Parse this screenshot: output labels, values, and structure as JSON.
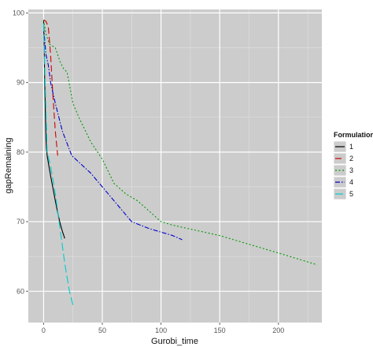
{
  "chart_data": {
    "type": "line",
    "xlabel": "Gurobi_time",
    "ylabel": "gapRemaining",
    "xlim": [
      -13,
      237
    ],
    "ylim": [
      55.5,
      100.5
    ],
    "xticks": [
      0,
      50,
      100,
      150,
      200
    ],
    "yticks": [
      60,
      70,
      80,
      90,
      100
    ],
    "grid": true,
    "legend": {
      "title": "Formulation",
      "placement": "right"
    },
    "series": [
      {
        "name": "1",
        "color": "#000000",
        "dash": "solid",
        "x": [
          0,
          0.5,
          1,
          1.5,
          2,
          2.5,
          3,
          4,
          6,
          8,
          10,
          12,
          14,
          16,
          18
        ],
        "y": [
          99,
          95,
          90,
          86,
          82,
          80.5,
          79.5,
          78.5,
          76.6,
          74.8,
          73.0,
          71.3,
          69.8,
          68.6,
          67.6
        ]
      },
      {
        "name": "2",
        "color": "#cc0000",
        "dash": "8,4",
        "x": [
          0,
          2,
          4,
          6,
          8,
          10,
          12
        ],
        "y": [
          99,
          98.8,
          98,
          94,
          88,
          83,
          79.5
        ]
      },
      {
        "name": "3",
        "color": "#009900",
        "dash": "2,2.5",
        "x": [
          0,
          2,
          5,
          10,
          14,
          17,
          20,
          25,
          30,
          40,
          50,
          60,
          70,
          80,
          90,
          100,
          110,
          150,
          200,
          233
        ],
        "y": [
          99,
          97,
          95.5,
          95,
          93,
          92,
          91.5,
          87,
          85,
          81.5,
          79,
          75.5,
          74,
          73,
          71.5,
          70,
          69.5,
          68,
          65.5,
          63.8
        ]
      },
      {
        "name": "4",
        "color": "#0000cc",
        "dash": "6,2,1.5,2",
        "x": [
          0,
          2,
          4,
          6,
          10,
          16,
          24,
          40,
          55,
          75,
          90,
          110,
          118
        ],
        "y": [
          98,
          94,
          92.5,
          90,
          87,
          83,
          79.5,
          77,
          74,
          70,
          69,
          68,
          67.4
        ]
      },
      {
        "name": "5",
        "color": "#00cccc",
        "dash": "10,4",
        "x": [
          0,
          1,
          2,
          3,
          6,
          10,
          14,
          18,
          22,
          25
        ],
        "y": [
          98.5,
          92,
          86,
          80,
          78,
          74,
          69,
          64,
          60,
          58
        ]
      }
    ]
  }
}
